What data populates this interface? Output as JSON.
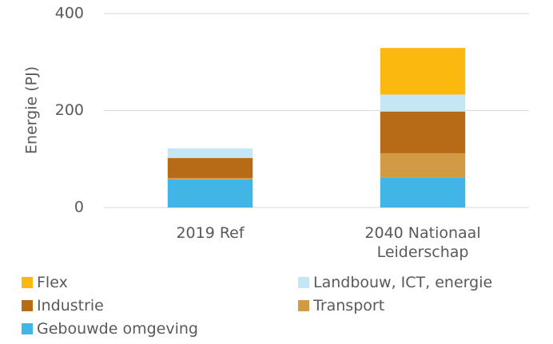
{
  "chart_data": {
    "type": "stacked_bar",
    "y_label": "Energie (PJ)",
    "categories": [
      "2019 Ref",
      "2040 Nationaal Leiderschap"
    ],
    "series": [
      {
        "name": "Flex",
        "color": "#fbb80f",
        "values": [
          0,
          96
        ]
      },
      {
        "name": "Landbouw, ICT, energie",
        "color": "#c4e6f5",
        "values": [
          20,
          35
        ]
      },
      {
        "name": "Industrie",
        "color": "#b86b17",
        "values": [
          41,
          86
        ]
      },
      {
        "name": "Transport",
        "color": "#d39a45",
        "values": [
          3,
          50
        ]
      },
      {
        "name": "Gebouwde omgeving",
        "color": "#41b6e6",
        "values": [
          58,
          62
        ]
      }
    ],
    "ylim": [
      0,
      400
    ],
    "yticks": [
      0,
      200,
      400
    ],
    "grid": true
  }
}
